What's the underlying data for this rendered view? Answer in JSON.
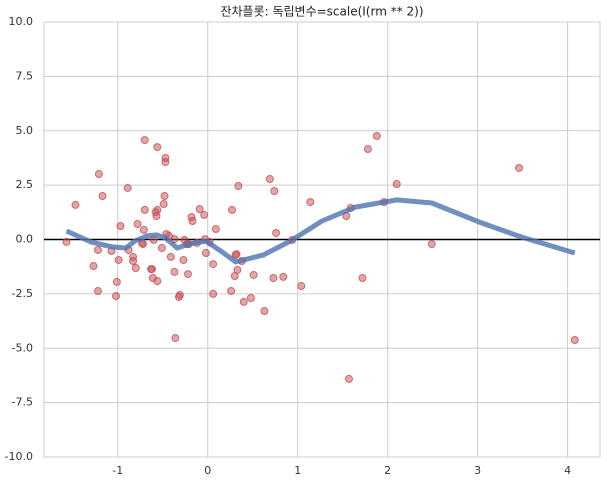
{
  "chart_data": {
    "type": "scatter",
    "title": "잔차플롯: 독립변수=scale(I(rm ** 2))",
    "xlim": [
      -1.82,
      4.36
    ],
    "ylim": [
      -10,
      10
    ],
    "xticks": [
      -1,
      0,
      1,
      2,
      3,
      4
    ],
    "yticks": [
      {
        "value": -10,
        "label": "-10.0"
      },
      -7.5,
      {
        "value": -5,
        "label": "-5.0"
      },
      -2.5,
      {
        "value": 0,
        "label": "0.0"
      },
      2.5,
      {
        "value": 5,
        "label": "5.0"
      },
      7.5,
      {
        "value": 10,
        "label": "10.0"
      }
    ],
    "grid": true,
    "hline": 0,
    "points": {
      "color": "#c44e52",
      "x": [
        -1.57,
        -1.47,
        -1.21,
        -1.17,
        -1.27,
        -1.22,
        -1.22,
        -1.07,
        -1.02,
        -1.01,
        -0.99,
        -0.97,
        -0.89,
        -0.88,
        -0.83,
        -0.83,
        -0.8,
        -0.78,
        -0.73,
        -0.72,
        -0.71,
        -0.7,
        -0.7,
        -0.63,
        -0.62,
        -0.61,
        -0.6,
        -0.58,
        -0.57,
        -0.56,
        -0.56,
        -0.56,
        -0.51,
        -0.49,
        -0.48,
        -0.47,
        -0.47,
        -0.46,
        -0.43,
        -0.41,
        -0.37,
        -0.37,
        -0.36,
        -0.32,
        -0.31,
        -0.27,
        -0.26,
        -0.23,
        -0.22,
        -0.21,
        -0.18,
        -0.17,
        -0.12,
        -0.09,
        -0.04,
        -0.03,
        -0.02,
        0.02,
        0.06,
        0.06,
        0.09,
        0.26,
        0.27,
        0.3,
        0.31,
        0.32,
        0.33,
        0.34,
        0.38,
        0.4,
        0.48,
        0.51,
        0.63,
        0.69,
        0.73,
        0.74,
        0.76,
        0.84,
        0.94,
        1.04,
        1.14,
        1.57,
        1.54,
        1.59,
        1.72,
        1.78,
        1.88,
        1.96,
        2.1,
        2.49,
        3.46,
        4.08
      ],
      "y": [
        -0.11,
        1.59,
        3.01,
        2.0,
        -1.22,
        -2.37,
        -0.48,
        -0.53,
        -2.6,
        -1.95,
        -0.94,
        0.62,
        2.37,
        -0.48,
        -0.8,
        -0.99,
        -1.31,
        0.71,
        -0.16,
        -0.21,
        0.44,
        1.36,
        4.57,
        -1.36,
        -1.36,
        -1.77,
        -0.02,
        1.26,
        1.08,
        -1.91,
        4.25,
        1.36,
        -0.39,
        1.63,
        2.0,
        3.75,
        3.56,
        0.25,
        0.16,
        -0.8,
        0.02,
        -1.49,
        -4.53,
        -2.64,
        -2.55,
        -0.94,
        -0.02,
        -0.21,
        -1.59,
        -0.21,
        1.03,
        0.85,
        -0.16,
        1.4,
        1.13,
        0.02,
        -0.62,
        -0.11,
        -1.13,
        -2.5,
        0.48,
        -2.37,
        1.36,
        -1.68,
        -0.71,
        -0.67,
        -1.4,
        2.46,
        -0.99,
        -2.87,
        -2.69,
        -1.63,
        -3.29,
        2.78,
        -1.77,
        2.23,
        0.3,
        -1.72,
        -0.02,
        -2.14,
        1.72,
        -6.41,
        1.08,
        1.45,
        -1.77,
        4.16,
        4.76,
        1.72,
        2.55,
        -0.21,
        3.29,
        -4.62
      ]
    },
    "line": {
      "color": "#4c72b0",
      "x": [
        -1.57,
        -1.3,
        -1.06,
        -0.91,
        -0.81,
        -0.68,
        -0.57,
        -0.47,
        -0.34,
        -0.21,
        -0.02,
        0.16,
        0.31,
        0.62,
        0.92,
        1.27,
        1.64,
        2.1,
        2.49,
        3.02,
        3.49,
        4.08
      ],
      "y": [
        0.39,
        -0.11,
        -0.34,
        -0.39,
        -0.07,
        0.16,
        0.21,
        0.07,
        -0.39,
        -0.21,
        -0.07,
        -0.57,
        -1.03,
        -0.71,
        -0.07,
        0.85,
        1.49,
        1.82,
        1.68,
        0.8,
        0.11,
        -0.62
      ]
    }
  }
}
